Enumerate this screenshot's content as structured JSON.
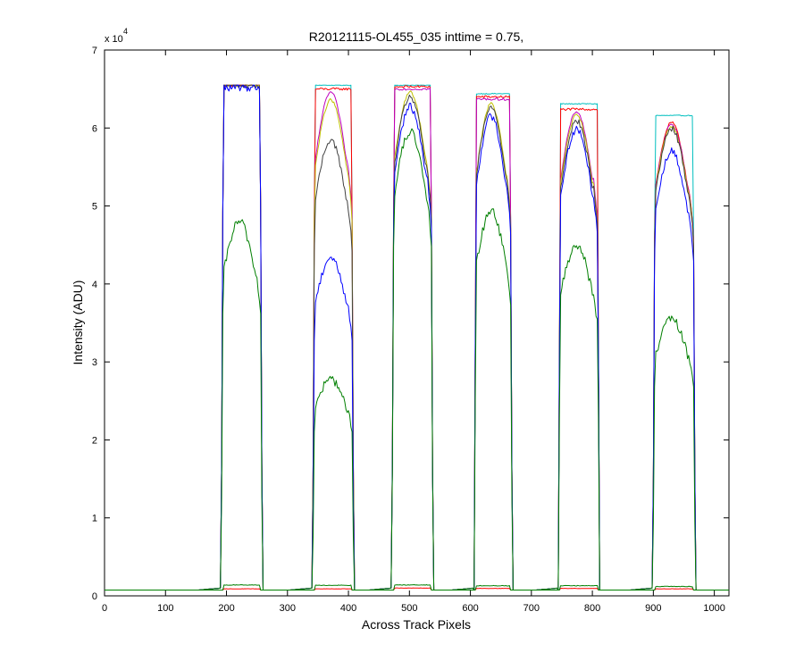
{
  "chart_data": {
    "type": "line",
    "title": "R20121115-OL455_035 inttime = 0.75,",
    "xlabel": "Across Track Pixels",
    "ylabel": "Intensity (ADU)",
    "y_exponent_label": "x 10",
    "y_exponent_power": "4",
    "xlim": [
      0,
      1024
    ],
    "ylim": [
      0,
      70000
    ],
    "x_ticks": [
      0,
      100,
      200,
      300,
      400,
      500,
      600,
      700,
      800,
      900,
      1000
    ],
    "y_ticks": [
      0,
      10000,
      20000,
      30000,
      40000,
      50000,
      60000,
      70000
    ],
    "x_tick_labels": [
      "0",
      "100",
      "200",
      "300",
      "400",
      "500",
      "600",
      "700",
      "800",
      "900",
      "1000"
    ],
    "y_tick_labels": [
      "0",
      "1",
      "2",
      "3",
      "4",
      "5",
      "6",
      "7"
    ],
    "grid": false,
    "baseline": 750,
    "windows": [
      {
        "start": 195,
        "end": 255,
        "top": 65500
      },
      {
        "start": 345,
        "end": 405,
        "top": 65500
      },
      {
        "start": 475,
        "end": 535,
        "top": 65500
      },
      {
        "start": 610,
        "end": 665,
        "top": 64500
      },
      {
        "start": 748,
        "end": 808,
        "top": 63200
      },
      {
        "start": 903,
        "end": 965,
        "top": 61700
      }
    ],
    "series": [
      {
        "color": "#00bfbf",
        "levels": [
          65500,
          65500,
          65500,
          64400,
          63100,
          61600
        ],
        "noise": 60
      },
      {
        "color": "#ff0000",
        "levels": [
          65500,
          65000,
          65300,
          64000,
          62400,
          60700
        ],
        "noise": 150
      },
      {
        "color": "#bf00bf",
        "levels": [
          65500,
          64600,
          65000,
          63700,
          62100,
          60500
        ],
        "noise": 150
      },
      {
        "color": "#bfbf00",
        "levels": [
          65500,
          63600,
          64600,
          63100,
          61600,
          60200
        ],
        "noise": 200
      },
      {
        "color": "#404040",
        "levels": [
          65500,
          58500,
          64000,
          62600,
          60900,
          59900
        ],
        "noise": 400
      },
      {
        "color": "#0000ff",
        "levels": [
          65200,
          43400,
          62700,
          61500,
          59800,
          57000
        ],
        "noise": 500
      },
      {
        "color": "#007f00",
        "levels": [
          48000,
          27800,
          59500,
          49500,
          45000,
          35500
        ],
        "noise": 600
      },
      {
        "color": "#ff0000",
        "levels": [
          900,
          900,
          1000,
          950,
          950,
          900
        ],
        "noise": 20
      },
      {
        "color": "#007f00",
        "levels": [
          1400,
          1350,
          1400,
          1300,
          1300,
          1200
        ],
        "noise": 40
      }
    ]
  }
}
